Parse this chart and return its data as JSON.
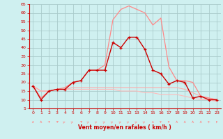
{
  "x": [
    0,
    1,
    2,
    3,
    4,
    5,
    6,
    7,
    8,
    9,
    10,
    11,
    12,
    13,
    14,
    15,
    16,
    17,
    18,
    19,
    20,
    21,
    22,
    23
  ],
  "series_dark": [
    18,
    10,
    15,
    16,
    16,
    20,
    21,
    27,
    27,
    27,
    43,
    40,
    46,
    46,
    39,
    27,
    25,
    19,
    21,
    20,
    11,
    12,
    10,
    10
  ],
  "series_gust": [
    18,
    11,
    15,
    16,
    17,
    20,
    21,
    27,
    27,
    30,
    56,
    62,
    64,
    62,
    60,
    53,
    57,
    29,
    21,
    21,
    20,
    12,
    11,
    10
  ],
  "series_flat1": [
    18,
    15,
    15,
    16,
    16,
    17,
    17,
    17,
    17,
    17,
    17,
    17,
    17,
    17,
    17,
    17,
    17,
    17,
    17,
    16,
    14,
    12,
    11,
    10
  ],
  "series_flat2": [
    18,
    15,
    15,
    16,
    16,
    16,
    16,
    16,
    16,
    16,
    16,
    15,
    15,
    15,
    14,
    14,
    13,
    13,
    13,
    12,
    11,
    10,
    10,
    9
  ],
  "bg_color": "#cff0f0",
  "grid_color": "#aacccc",
  "color_dark": "#cc0000",
  "color_gust": "#ff8888",
  "color_flat1": "#ffaaaa",
  "color_flat2": "#ffbbbb",
  "xlabel": "Vent moyen/en rafales ( km/h )",
  "ylim": [
    5,
    65
  ],
  "yticks": [
    5,
    10,
    15,
    20,
    25,
    30,
    35,
    40,
    45,
    50,
    55,
    60,
    65
  ],
  "xlim": [
    -0.5,
    23.5
  ],
  "xticks": [
    0,
    1,
    2,
    3,
    4,
    5,
    6,
    7,
    8,
    9,
    10,
    11,
    12,
    13,
    14,
    15,
    16,
    17,
    18,
    19,
    20,
    21,
    22,
    23
  ],
  "arrow_angles": [
    0,
    0,
    30,
    45,
    60,
    60,
    45,
    60,
    60,
    60,
    60,
    60,
    60,
    60,
    60,
    0,
    -30,
    -30,
    0,
    0,
    0,
    0,
    -20,
    -20
  ]
}
